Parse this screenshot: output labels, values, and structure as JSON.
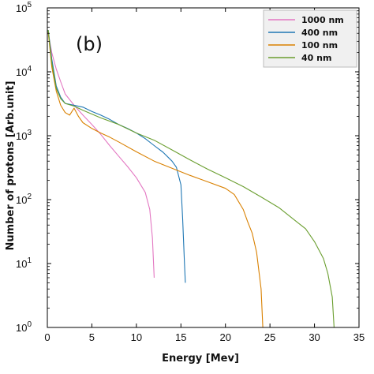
{
  "chart_data": {
    "type": "line",
    "panel_label": "(b)",
    "xlabel": "Energy [Mev]",
    "ylabel": "Number of protons [Arb.unit]",
    "xlim": [
      0,
      35
    ],
    "ylim": [
      1,
      100000
    ],
    "yscale": "log",
    "xticks": [
      0,
      5,
      10,
      15,
      20,
      25,
      30,
      35
    ],
    "yticks": [
      {
        "value": 1,
        "base": "10",
        "exp": "0"
      },
      {
        "value": 10,
        "base": "10",
        "exp": "1"
      },
      {
        "value": 100,
        "base": "10",
        "exp": "2"
      },
      {
        "value": 1000,
        "base": "10",
        "exp": "3"
      },
      {
        "value": 10000,
        "base": "10",
        "exp": "4"
      },
      {
        "value": 100000,
        "base": "10",
        "exp": "5"
      }
    ],
    "grid": false,
    "legend_position": "top-right",
    "series": [
      {
        "name": "1000 nm",
        "color": "#e377c2",
        "points": [
          [
            0.1,
            40000
          ],
          [
            0.5,
            20000
          ],
          [
            1,
            11000
          ],
          [
            1.5,
            7000
          ],
          [
            2,
            4500
          ],
          [
            3,
            3000
          ],
          [
            4,
            2100
          ],
          [
            5,
            1500
          ],
          [
            6,
            1050
          ],
          [
            7,
            700
          ],
          [
            8,
            480
          ],
          [
            9,
            330
          ],
          [
            10,
            220
          ],
          [
            11,
            130
          ],
          [
            11.5,
            70
          ],
          [
            11.8,
            25
          ],
          [
            12,
            6
          ]
        ]
      },
      {
        "name": "400 nm",
        "color": "#1f77b4",
        "points": [
          [
            0.1,
            45000
          ],
          [
            0.5,
            16000
          ],
          [
            1,
            6000
          ],
          [
            1.5,
            4000
          ],
          [
            2,
            3200
          ],
          [
            3,
            3000
          ],
          [
            4,
            2800
          ],
          [
            5,
            2400
          ],
          [
            6,
            2100
          ],
          [
            7,
            1800
          ],
          [
            8,
            1500
          ],
          [
            9,
            1300
          ],
          [
            10,
            1100
          ],
          [
            11,
            900
          ],
          [
            12,
            700
          ],
          [
            13,
            550
          ],
          [
            14,
            400
          ],
          [
            14.5,
            320
          ],
          [
            15,
            170
          ],
          [
            15.2,
            50
          ],
          [
            15.4,
            10
          ],
          [
            15.5,
            5
          ]
        ]
      },
      {
        "name": "100 nm",
        "color": "#d98000",
        "points": [
          [
            0.1,
            42000
          ],
          [
            0.5,
            12000
          ],
          [
            1,
            5000
          ],
          [
            1.5,
            3000
          ],
          [
            2,
            2300
          ],
          [
            2.5,
            2100
          ],
          [
            3,
            2700
          ],
          [
            3.5,
            2000
          ],
          [
            4,
            1600
          ],
          [
            5,
            1300
          ],
          [
            6,
            1100
          ],
          [
            7,
            950
          ],
          [
            8,
            800
          ],
          [
            10,
            560
          ],
          [
            12,
            400
          ],
          [
            14,
            310
          ],
          [
            16,
            240
          ],
          [
            18,
            190
          ],
          [
            20,
            150
          ],
          [
            21,
            120
          ],
          [
            22,
            70
          ],
          [
            22.5,
            45
          ],
          [
            23,
            30
          ],
          [
            23.5,
            15
          ],
          [
            24,
            4
          ],
          [
            24.2,
            1
          ]
        ]
      },
      {
        "name": "40 nm",
        "color": "#6a9e2f",
        "points": [
          [
            0.1,
            45000
          ],
          [
            0.5,
            14000
          ],
          [
            1,
            5500
          ],
          [
            1.5,
            3800
          ],
          [
            2,
            3200
          ],
          [
            3,
            2900
          ],
          [
            4,
            2500
          ],
          [
            6,
            1900
          ],
          [
            8,
            1500
          ],
          [
            10,
            1100
          ],
          [
            12,
            850
          ],
          [
            14,
            600
          ],
          [
            16,
            420
          ],
          [
            18,
            300
          ],
          [
            20,
            220
          ],
          [
            22,
            160
          ],
          [
            24,
            110
          ],
          [
            26,
            75
          ],
          [
            28,
            45
          ],
          [
            29,
            35
          ],
          [
            30,
            22
          ],
          [
            31,
            12
          ],
          [
            31.5,
            7
          ],
          [
            32,
            3
          ],
          [
            32.2,
            1
          ]
        ]
      }
    ]
  }
}
